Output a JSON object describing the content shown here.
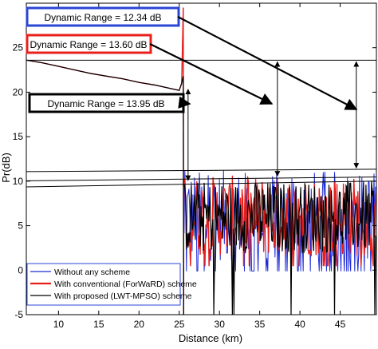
{
  "chart_data": {
    "type": "line",
    "title": "",
    "xlabel": "Distance (km)",
    "ylabel": "Pr(dB)",
    "xlim": [
      6,
      49.5
    ],
    "ylim": [
      -5,
      30
    ],
    "xticks": [
      10,
      15,
      20,
      25,
      30,
      35,
      40,
      45
    ],
    "yticks": [
      -5,
      0,
      5,
      10,
      15,
      20,
      25
    ],
    "legend_position": "bottom-left",
    "grid": false,
    "colors": {
      "blue": "#1f2bd8",
      "red": "#e8201c",
      "black": "#000000",
      "legend_box": "#2a46d4"
    },
    "series": [
      {
        "name": "Without any scheme",
        "color": "#1f2bd8",
        "x": [
          6,
          8,
          10,
          12,
          14,
          16,
          18,
          20,
          22,
          24,
          25,
          25.3,
          25.5
        ],
        "y": [
          23.6,
          23.3,
          22.9,
          22.5,
          22.1,
          21.8,
          21.5,
          21.1,
          20.8,
          20.4,
          20.2,
          21.0,
          29.5
        ]
      },
      {
        "name": "With conventional (ForWaRD) scheme",
        "color": "#e8201c",
        "x": [
          6,
          8,
          10,
          12,
          14,
          16,
          18,
          20,
          22,
          24,
          25,
          25.3,
          25.5
        ],
        "y": [
          23.6,
          23.3,
          22.9,
          22.5,
          22.1,
          21.8,
          21.5,
          21.1,
          20.8,
          20.4,
          20.2,
          21.0,
          29.5
        ]
      },
      {
        "name": "With proposed (LWT-MPSO) scheme",
        "color": "#000000",
        "x": [
          6,
          8,
          10,
          12,
          14,
          16,
          18,
          20,
          22,
          24,
          25,
          25.3,
          25.5
        ],
        "y": [
          23.6,
          23.3,
          22.9,
          22.5,
          22.1,
          21.8,
          21.5,
          21.1,
          20.8,
          20.4,
          20.2,
          21.0,
          21.8
        ]
      }
    ],
    "reference_lines": [
      23.6,
      11.3,
      10.4,
      9.9
    ],
    "annotations": [
      {
        "label": "Dynamic Range = 12.34 dB",
        "color": "#2a46d4"
      },
      {
        "label": "Dynamic Range = 13.60 dB",
        "color": "#e8201c"
      },
      {
        "label": "Dynamic Range = 13.95 dB",
        "color": "#000000"
      }
    ],
    "measurement_arrows": [
      {
        "x": 37.2,
        "from": 23.6,
        "to": 10.4
      },
      {
        "x": 47.0,
        "from": 23.6,
        "to": 11.3
      },
      {
        "x": 26.1,
        "from": 20.5,
        "to": 9.9
      }
    ],
    "noise_region": {
      "x_start": 25.6,
      "x_end": 49.5,
      "blue_range": [
        -0.1,
        11.2
      ],
      "red_range": [
        0.5,
        10.6
      ],
      "black_range": [
        -5,
        10.3
      ]
    }
  }
}
